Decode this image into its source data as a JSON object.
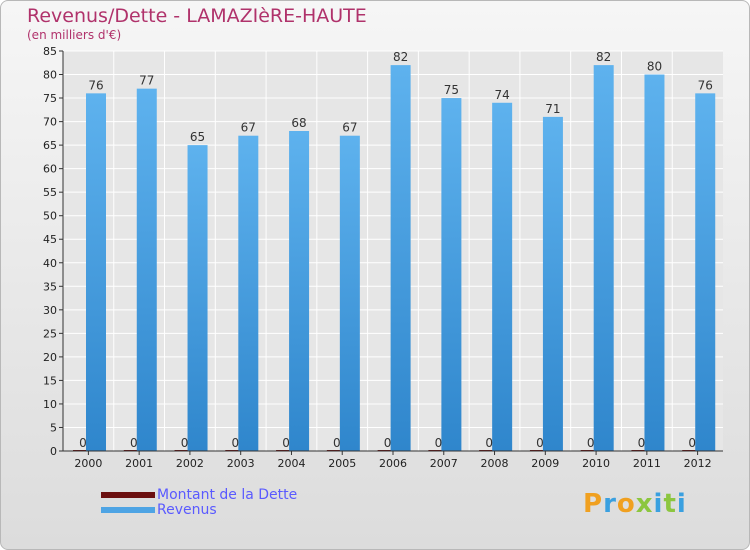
{
  "title": "Revenus/Dette - LAMAZIèRE-HAUTE",
  "subtitle": "(en milliers d'€)",
  "colors": {
    "dette": "#6b0f0f",
    "revenus": "#4ea4e4",
    "title": "#b0326b"
  },
  "legend": [
    {
      "label": "Montant de la Dette",
      "color": "#6b0f0f"
    },
    {
      "label": "Revenus",
      "color": "#4ea4e4"
    }
  ],
  "logo_text": "Proxiti",
  "chart_data": {
    "type": "bar",
    "title": "Revenus/Dette - LAMAZIèRE-HAUTE",
    "ylabel": "",
    "xlabel": "",
    "ylim": [
      0,
      85
    ],
    "yticks": [
      0,
      5,
      10,
      15,
      20,
      25,
      30,
      35,
      40,
      45,
      50,
      55,
      60,
      65,
      70,
      75,
      80,
      85
    ],
    "grid": true,
    "legend_position": "bottom-left",
    "categories": [
      "2000",
      "2001",
      "2002",
      "2003",
      "2004",
      "2005",
      "2006",
      "2007",
      "2008",
      "2009",
      "2010",
      "2011",
      "2012"
    ],
    "series": [
      {
        "name": "Montant de la Dette",
        "color": "#6b0f0f",
        "values": [
          0,
          0,
          0,
          0,
          0,
          0,
          0,
          0,
          0,
          0,
          0,
          0,
          0
        ]
      },
      {
        "name": "Revenus",
        "color": "#4ea4e4",
        "values": [
          76,
          77,
          65,
          67,
          68,
          67,
          82,
          75,
          74,
          71,
          82,
          80,
          76
        ]
      }
    ]
  }
}
